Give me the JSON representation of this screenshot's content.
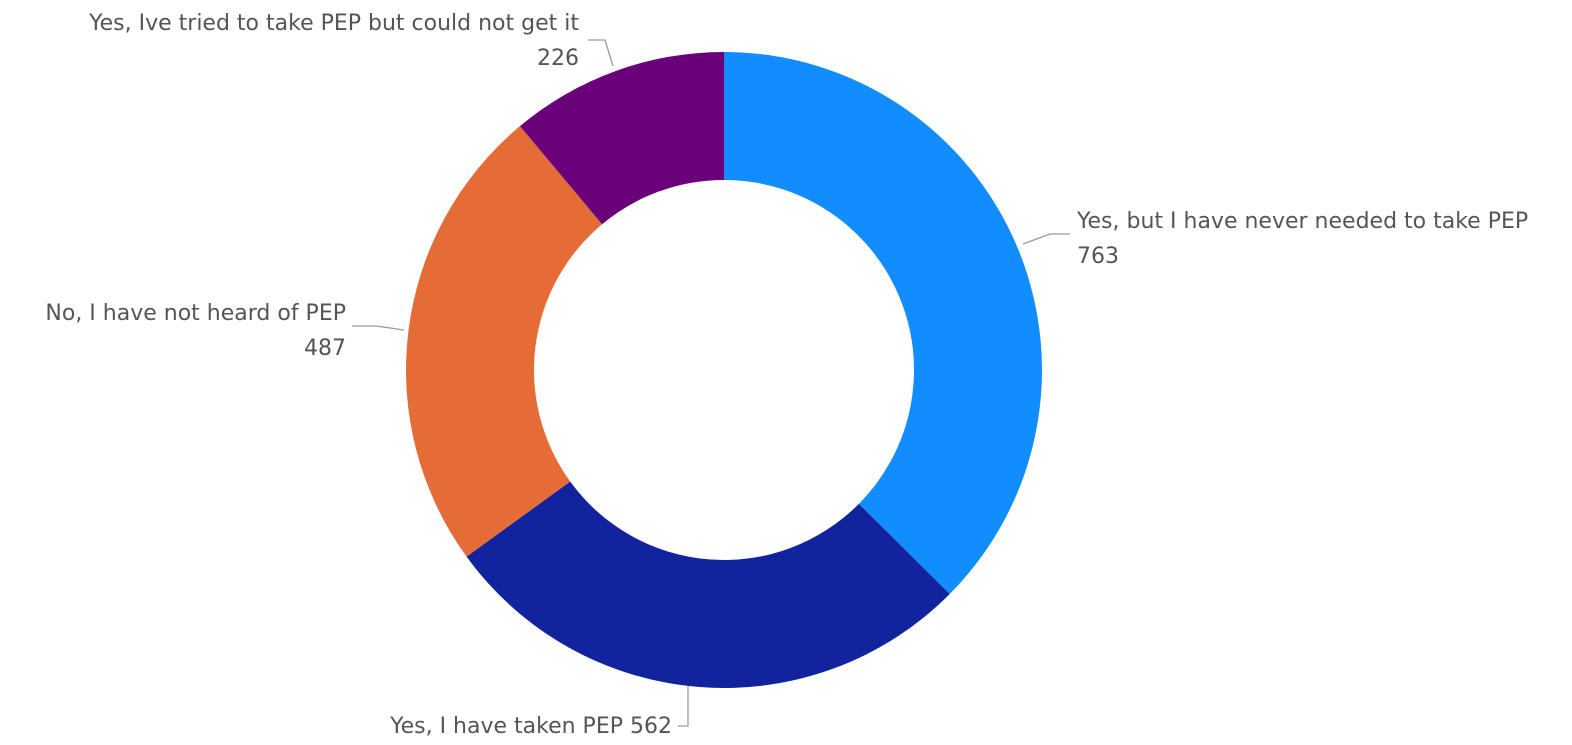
{
  "chart_data": {
    "type": "pie",
    "variant": "donut",
    "title": "",
    "legend": "none",
    "slices": [
      {
        "label": "Yes, but I have never needed to take PEP",
        "value": 763,
        "value_text": "763",
        "color": "#118dff"
      },
      {
        "label": "Yes, I have taken PEP",
        "value": 562,
        "value_text": "562",
        "color": "#12239e"
      },
      {
        "label": "No, I have not heard of PEP",
        "value": 487,
        "value_text": "487",
        "color": "#e66c37"
      },
      {
        "label": "Yes, Ive tried to take PEP but could not get it",
        "value": 226,
        "value_text": "226",
        "color": "#6b007b"
      }
    ]
  }
}
